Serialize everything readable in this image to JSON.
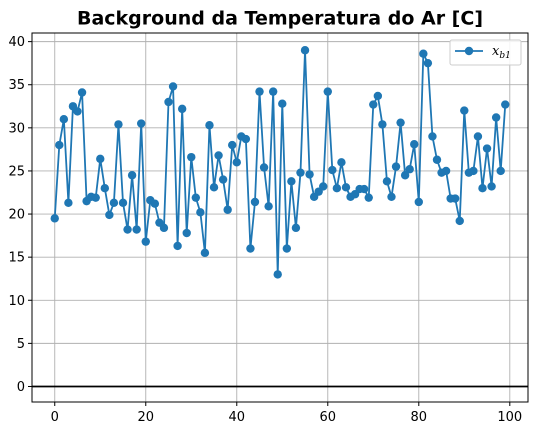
{
  "chart_data": {
    "type": "line",
    "title": "Background da Temperatura do Ar [C]",
    "xlabel": "",
    "ylabel": "",
    "xlim": [
      -5,
      104
    ],
    "ylim": [
      -1.8,
      41
    ],
    "xticks": [
      0,
      20,
      40,
      60,
      80,
      100
    ],
    "yticks": [
      0,
      5,
      10,
      15,
      20,
      25,
      30,
      35,
      40
    ],
    "grid": true,
    "legend_position": "top-right",
    "hline": 0,
    "series": [
      {
        "name": "x_b1",
        "name_main": "x",
        "name_sub": "b1",
        "color": "#1f77b4",
        "marker": "circle",
        "x": [
          0,
          1,
          2,
          3,
          4,
          5,
          6,
          7,
          8,
          9,
          10,
          11,
          12,
          13,
          14,
          15,
          16,
          17,
          18,
          19,
          20,
          21,
          22,
          23,
          24,
          25,
          26,
          27,
          28,
          29,
          30,
          31,
          32,
          33,
          34,
          35,
          36,
          37,
          38,
          39,
          40,
          41,
          42,
          43,
          44,
          45,
          46,
          47,
          48,
          49,
          50,
          51,
          52,
          53,
          54,
          55,
          56,
          57,
          58,
          59,
          60,
          61,
          62,
          63,
          64,
          65,
          66,
          67,
          68,
          69,
          70,
          71,
          72,
          73,
          74,
          75,
          76,
          77,
          78,
          79,
          80,
          81,
          82,
          83,
          84,
          85,
          86,
          87,
          88,
          89,
          90,
          91,
          92,
          93,
          94,
          95,
          96,
          97,
          98,
          99
        ],
        "y": [
          19.5,
          28.0,
          31.0,
          21.3,
          32.5,
          31.9,
          34.1,
          21.5,
          22.0,
          21.9,
          26.4,
          23.0,
          19.9,
          21.3,
          30.4,
          21.3,
          18.2,
          24.5,
          18.2,
          30.5,
          16.8,
          21.6,
          21.2,
          19.0,
          18.4,
          33.0,
          34.8,
          16.3,
          32.2,
          17.8,
          26.6,
          21.9,
          20.2,
          15.5,
          30.3,
          23.1,
          26.8,
          24.0,
          20.5,
          28.0,
          26.0,
          29.0,
          28.7,
          16.0,
          21.4,
          34.2,
          25.4,
          20.9,
          34.2,
          13.0,
          32.8,
          16.0,
          23.8,
          18.4,
          24.8,
          39.0,
          24.6,
          22.0,
          22.6,
          23.2,
          34.2,
          25.1,
          23.0,
          26.0,
          23.1,
          22.0,
          22.3,
          22.9,
          22.9,
          21.9,
          32.7,
          33.7,
          30.4,
          23.8,
          22.0,
          25.5,
          30.6,
          24.5,
          25.2,
          28.1,
          21.4,
          38.6,
          37.5,
          29.0,
          26.3,
          24.8,
          25.0,
          21.8,
          21.8,
          19.2,
          32.0,
          24.8,
          25.0,
          29.0,
          23.0,
          27.6,
          23.2,
          31.2,
          25.0,
          32.7
        ]
      }
    ]
  }
}
